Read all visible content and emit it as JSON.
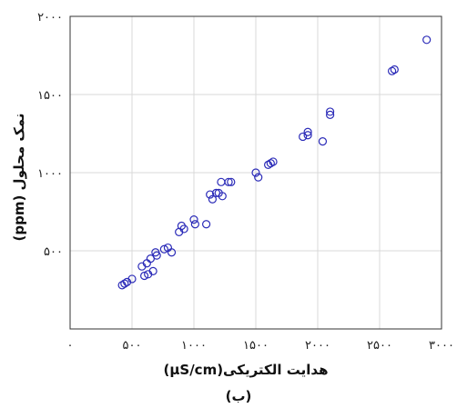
{
  "chart_data": {
    "type": "scatter",
    "xlabel": "هدایت الکتریکی(µS/cm)",
    "ylabel": "نمک محلول (ppm)",
    "caption": "(ب)",
    "xlim": [
      0,
      3000
    ],
    "ylim": [
      0,
      2000
    ],
    "xticks": [
      {
        "value": 0,
        "label": "۰"
      },
      {
        "value": 500,
        "label": "۵۰۰"
      },
      {
        "value": 1000,
        "label": "۱۰۰۰"
      },
      {
        "value": 1500,
        "label": "۱۵۰۰"
      },
      {
        "value": 2000,
        "label": "۲۰۰۰"
      },
      {
        "value": 2500,
        "label": "۲۵۰۰"
      },
      {
        "value": 3000,
        "label": "۳۰۰۰"
      }
    ],
    "yticks": [
      {
        "value": 500,
        "label": "۵۰۰"
      },
      {
        "value": 1000,
        "label": "۱۰۰۰"
      },
      {
        "value": 1500,
        "label": "۱۵۰۰"
      },
      {
        "value": 2000,
        "label": "۲۰۰۰"
      }
    ],
    "grid": true,
    "marker_color": "#2b2bb8",
    "points": [
      [
        420,
        280
      ],
      [
        440,
        290
      ],
      [
        460,
        300
      ],
      [
        500,
        320
      ],
      [
        580,
        400
      ],
      [
        600,
        340
      ],
      [
        620,
        420
      ],
      [
        630,
        350
      ],
      [
        650,
        450
      ],
      [
        670,
        370
      ],
      [
        690,
        490
      ],
      [
        700,
        470
      ],
      [
        760,
        510
      ],
      [
        790,
        520
      ],
      [
        820,
        490
      ],
      [
        880,
        620
      ],
      [
        900,
        660
      ],
      [
        920,
        640
      ],
      [
        1000,
        700
      ],
      [
        1010,
        670
      ],
      [
        1100,
        670
      ],
      [
        1130,
        860
      ],
      [
        1150,
        830
      ],
      [
        1180,
        870
      ],
      [
        1200,
        870
      ],
      [
        1220,
        940
      ],
      [
        1230,
        850
      ],
      [
        1280,
        940
      ],
      [
        1300,
        940
      ],
      [
        1500,
        1000
      ],
      [
        1520,
        970
      ],
      [
        1600,
        1050
      ],
      [
        1620,
        1060
      ],
      [
        1640,
        1070
      ],
      [
        1880,
        1230
      ],
      [
        1920,
        1240
      ],
      [
        1920,
        1260
      ],
      [
        2040,
        1200
      ],
      [
        2100,
        1370
      ],
      [
        2100,
        1390
      ],
      [
        2600,
        1650
      ],
      [
        2620,
        1660
      ],
      [
        2880,
        1850
      ]
    ]
  }
}
